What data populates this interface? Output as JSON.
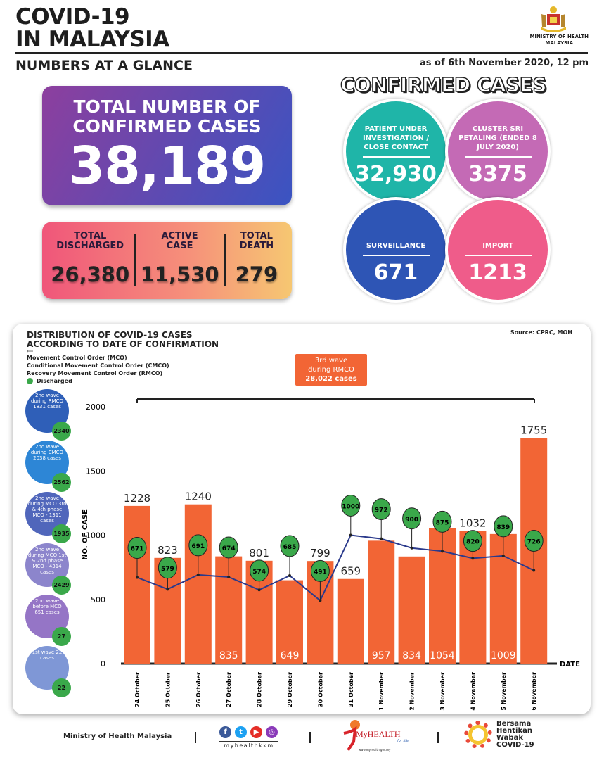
{
  "header": {
    "title_line1": "COVID-19",
    "title_line2": "IN MALAYSIA",
    "subtitle": "NUMBERS AT A GLANCE",
    "as_of": "as of 6th November 2020, 12 pm",
    "ministry_line1": "MINISTRY OF HEALTH",
    "ministry_line2": "MALAYSIA"
  },
  "total": {
    "label_line1": "TOTAL NUMBER OF",
    "label_line2": "CONFIRMED CASES",
    "value": "38,189"
  },
  "stats": [
    {
      "label_line1": "TOTAL",
      "label_line2": "DISCHARGED",
      "value": "26,380"
    },
    {
      "label_line1": "ACTIVE",
      "label_line2": "CASE",
      "value": "11,530"
    },
    {
      "label_line1": "TOTAL",
      "label_line2": "DEATH",
      "value": "279"
    }
  ],
  "confirmed": {
    "heading": "CONFIRMED CASES",
    "items": [
      {
        "label": "PATIENT UNDER INVESTIGATION / CLOSE CONTACT",
        "value": "32,930",
        "color": "#1fb5a8"
      },
      {
        "label": "CLUSTER SRI PETALING (ENDED 8 JULY 2020)",
        "value": "3375",
        "color": "#c46ab5"
      },
      {
        "label": "SURVEILLANCE",
        "value": "671",
        "color": "#2e55b5"
      },
      {
        "label": "IMPORT",
        "value": "1213",
        "color": "#ef5c8a"
      }
    ]
  },
  "chart_header": {
    "title_line1": "DISTRIBUTION OF COVID-19 CASES",
    "title_line2": "ACCORDING TO DATE OF CONFIRMATION",
    "dots": "***",
    "legend": [
      "Movement Control Order (MCO)",
      "Conditional Movement Control Order (CMCO)",
      "Recovery Movement Control Order (RMCO)"
    ],
    "discharged_label": "Discharged",
    "source": "Source: CPRC, MOH"
  },
  "third_wave": {
    "line1": "3rd wave",
    "line2": "during RMCO",
    "line3": "28,022 cases"
  },
  "waves": [
    {
      "label": "2nd wave during RMCO 1831 cases",
      "discharged": "2340",
      "color": "#2f5fb8"
    },
    {
      "label": "2nd wave during CMCO 2038 cases",
      "discharged": "2562",
      "color": "#2d86d6"
    },
    {
      "label": "2nd wave during MCO 3rd & 4th phase MCO - 1311 cases",
      "discharged": "1935",
      "color": "#5066bb"
    },
    {
      "label": "2nd wave during MCO 1st & 2nd phase MCO - 4314 cases",
      "discharged": "2429",
      "color": "#8c85cc"
    },
    {
      "label": "2nd wave before MCO 651 cases",
      "discharged": "27",
      "color": "#9575c6"
    },
    {
      "label": "1st wave 22 cases",
      "discharged": "22",
      "color": "#7f97d6"
    }
  ],
  "chart_data": {
    "type": "bar",
    "ylabel": "NO. OF CASE",
    "xlabel": "DATE",
    "ylim": [
      0,
      2000
    ],
    "yticks": [
      "0",
      "500",
      "1000",
      "1500",
      "2000"
    ],
    "categories": [
      "24 October",
      "25 October",
      "26 October",
      "27 October",
      "28 October",
      "29 October",
      "30 October",
      "31 October",
      "1 November",
      "2 November",
      "3 November",
      "4 November",
      "5 November",
      "6 November"
    ],
    "series": [
      {
        "type": "bar",
        "values": [
          1228,
          823,
          1240,
          835,
          801,
          649,
          799,
          659,
          957,
          834,
          1054,
          1032,
          1009,
          1755
        ],
        "color": "#f26535"
      },
      {
        "type": "line",
        "name": "Discharged",
        "values": [
          671,
          579,
          691,
          674,
          574,
          685,
          491,
          1000,
          972,
          900,
          875,
          820,
          839,
          726
        ],
        "color": "#2b3a8c",
        "marker_color": "#3aa84a"
      }
    ]
  },
  "footer": {
    "ministry": "Ministry of Health Malaysia",
    "social_handle": "myhealthkkm",
    "myhealth": "MyHEALTH",
    "myhealth_tag": "for life",
    "myhealth_url": "www.myhealth.gov.my",
    "campaign": [
      "Bersama",
      "Hentikan",
      "Wabak",
      "COVID-19"
    ]
  }
}
